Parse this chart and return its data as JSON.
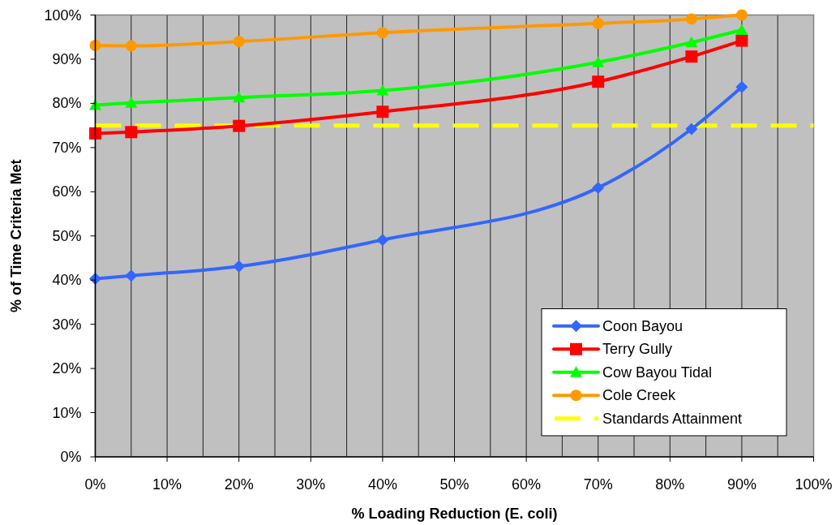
{
  "chart_data": {
    "type": "line",
    "xlabel": "% Loading Reduction (E. coli)",
    "ylabel": "% of Time Criteria Met",
    "x": [
      0,
      5,
      20,
      40,
      70,
      83,
      90
    ],
    "xlim": [
      0,
      100
    ],
    "xticks": [
      {
        "value": 0,
        "label": "0%"
      },
      {
        "value": 5,
        "label": null
      },
      {
        "value": 10,
        "label": "10%"
      },
      {
        "value": 15,
        "label": null
      },
      {
        "value": 20,
        "label": "20%"
      },
      {
        "value": 25,
        "label": null
      },
      {
        "value": 30,
        "label": "30%"
      },
      {
        "value": 35,
        "label": null
      },
      {
        "value": 40,
        "label": "40%"
      },
      {
        "value": 45,
        "label": null
      },
      {
        "value": 50,
        "label": "50%"
      },
      {
        "value": 55,
        "label": null
      },
      {
        "value": 60,
        "label": "60%"
      },
      {
        "value": 65,
        "label": null
      },
      {
        "value": 70,
        "label": "70%"
      },
      {
        "value": 75,
        "label": null
      },
      {
        "value": 80,
        "label": "80%"
      },
      {
        "value": 85,
        "label": null
      },
      {
        "value": 90,
        "label": "90%"
      },
      {
        "value": 95,
        "label": null
      },
      {
        "value": 100,
        "label": "100%"
      }
    ],
    "ylim": [
      0,
      100
    ],
    "yticks": [
      {
        "value": 0,
        "label": "0%"
      },
      {
        "value": 10,
        "label": "10%"
      },
      {
        "value": 20,
        "label": "20%"
      },
      {
        "value": 30,
        "label": "30%"
      },
      {
        "value": 40,
        "label": "40%"
      },
      {
        "value": 50,
        "label": "50%"
      },
      {
        "value": 60,
        "label": "60%"
      },
      {
        "value": 70,
        "label": "70%"
      },
      {
        "value": 80,
        "label": "80%"
      },
      {
        "value": 90,
        "label": "90%"
      },
      {
        "value": 100,
        "label": "100%"
      }
    ],
    "grid": "x",
    "legend": "bottom right",
    "line_style": "solid",
    "series": [
      {
        "name": "Coon Bayou",
        "color": "#3366ff",
        "marker": "diamond",
        "values": [
          40.3,
          41,
          43.1,
          49.1,
          60.9,
          74.2,
          83.7
        ]
      },
      {
        "name": "Terry Gully",
        "color": "#ff0000",
        "marker": "square",
        "values": [
          73.2,
          73.5,
          74.9,
          78.1,
          84.9,
          90.6,
          94.2
        ]
      },
      {
        "name": "Cow Bayou Tidal",
        "color": "#00ff00",
        "marker": "triangle",
        "values": [
          79.6,
          80.1,
          81.3,
          82.9,
          89.3,
          93.8,
          96.6
        ]
      },
      {
        "name": "Cole Creek",
        "color": "#ff9900",
        "marker": "circle",
        "values": [
          93.1,
          93,
          94,
          96,
          98.1,
          99.1,
          100
        ]
      }
    ],
    "ref_lines": [
      {
        "axis": "y",
        "value": 75,
        "label": "Standards Attainment",
        "color": "#ffff00",
        "line_style": "dashed"
      }
    ]
  }
}
